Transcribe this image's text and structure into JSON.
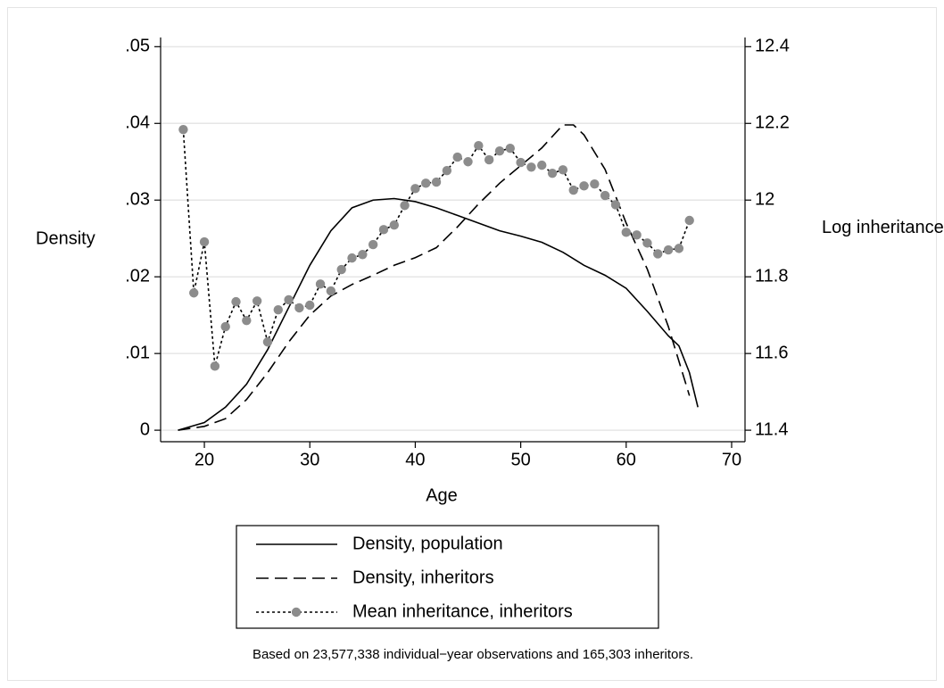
{
  "chart_data": {
    "type": "line",
    "xlabel": "Age",
    "ylabel": "Density",
    "y2label": "Log inheritance",
    "note": "Based on 23,577,338 individual−year observations and 165,303 inheritors.",
    "xlim": [
      15.85,
      71.27
    ],
    "xticks": [
      20,
      30,
      40,
      50,
      60,
      70
    ],
    "ylim": [
      -0.0015,
      0.0512
    ],
    "yticks": [
      0,
      {
        "value": 0.01,
        "label": ".01"
      },
      {
        "value": 0.02,
        "label": ".02"
      },
      {
        "value": 0.03,
        "label": ".03"
      },
      {
        "value": 0.04,
        "label": ".04"
      },
      {
        "value": 0.05,
        "label": ".05"
      }
    ],
    "y2lim": [
      11.37,
      12.424
    ],
    "y2ticks": [
      11.4,
      11.6,
      11.8,
      12,
      12.2,
      12.4
    ],
    "grid": true,
    "series": [
      {
        "name": "Density, population",
        "color": "#000000",
        "dash": "solid",
        "x": [
          17.5,
          20,
          22,
          24,
          26,
          28,
          30,
          32,
          34,
          36,
          38,
          40,
          42,
          44,
          46,
          48,
          50,
          52,
          54,
          56,
          58,
          60,
          62,
          64,
          65,
          66,
          66.8
        ],
        "values": [
          0.0,
          0.001,
          0.003,
          0.006,
          0.0105,
          0.016,
          0.0215,
          0.026,
          0.029,
          0.03,
          0.0302,
          0.0298,
          0.029,
          0.028,
          0.027,
          0.026,
          0.0253,
          0.0245,
          0.0232,
          0.0215,
          0.0202,
          0.0185,
          0.0155,
          0.0123,
          0.011,
          0.0075,
          0.003
        ]
      },
      {
        "name": "Density, inheritors",
        "color": "#000000",
        "dash": "dashed",
        "x": [
          17.5,
          20,
          22,
          24,
          26,
          28,
          30,
          32,
          34,
          36,
          38,
          40,
          42,
          44,
          46,
          48,
          50,
          52,
          54,
          55,
          56,
          58,
          60,
          62,
          64,
          66
        ],
        "values": [
          0.0,
          0.0005,
          0.0015,
          0.004,
          0.0075,
          0.0115,
          0.015,
          0.0175,
          0.019,
          0.0202,
          0.0215,
          0.0225,
          0.0238,
          0.0265,
          0.0295,
          0.0322,
          0.0345,
          0.0368,
          0.0398,
          0.0398,
          0.0385,
          0.034,
          0.027,
          0.021,
          0.0135,
          0.0045
        ]
      },
      {
        "name": "Mean inheritance, inheritors",
        "color": "#000000",
        "dash": "dotted",
        "marker_color": "#8c8c8c",
        "axis": "y2",
        "x": [
          18,
          19,
          20,
          21,
          22,
          23,
          24,
          25,
          26,
          27,
          28,
          29,
          30,
          31,
          32,
          33,
          34,
          35,
          36,
          37,
          38,
          39,
          40,
          41,
          42,
          43,
          44,
          45,
          46,
          47,
          48,
          49,
          50,
          51,
          52,
          53,
          54,
          55,
          56,
          57,
          58,
          59,
          60,
          61,
          62,
          63,
          64,
          65,
          66
        ],
        "values": [
          12.184,
          11.758,
          11.891,
          11.567,
          11.67,
          11.735,
          11.686,
          11.737,
          11.63,
          11.714,
          11.74,
          11.719,
          11.726,
          11.781,
          11.763,
          11.819,
          11.849,
          11.858,
          11.884,
          11.923,
          11.935,
          11.986,
          12.03,
          12.044,
          12.047,
          12.077,
          12.112,
          12.1,
          12.142,
          12.105,
          12.128,
          12.135,
          12.098,
          12.086,
          12.091,
          12.07,
          12.079,
          12.026,
          12.037,
          12.042,
          12.012,
          11.988,
          11.916,
          11.909,
          11.888,
          11.86,
          11.87,
          11.874,
          11.947
        ]
      }
    ]
  }
}
